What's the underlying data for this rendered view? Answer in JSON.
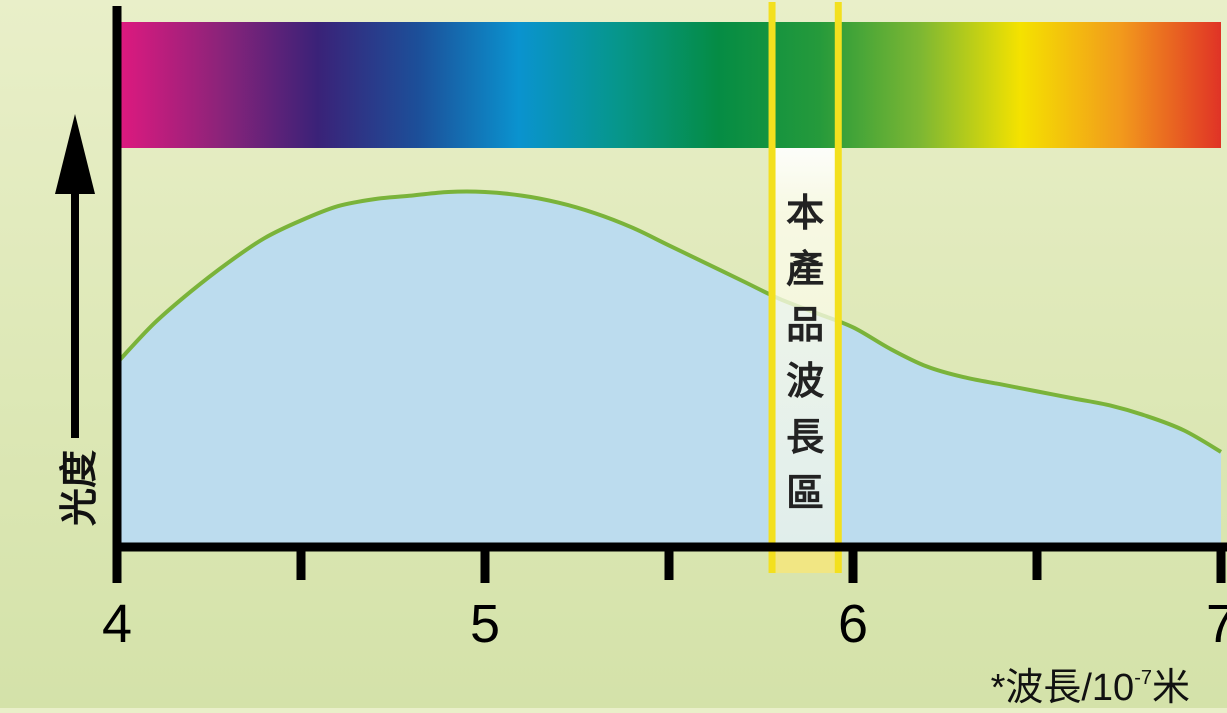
{
  "chart_data": {
    "type": "area",
    "title": "",
    "ylabel": "光度",
    "xlabel": "*波長/10⁻⁷米",
    "xlabel_parts": {
      "prefix": "*波長/10",
      "exponent": "-7",
      "suffix": "米"
    },
    "xlim": [
      4,
      7
    ],
    "x_ticks": [
      4,
      5,
      6,
      7
    ],
    "x_minor_ticks": [
      4.5,
      5.5,
      6.5
    ],
    "y_axis_values": "none",
    "grid": false,
    "legend": "none",
    "series": [
      {
        "x": [
          4.0,
          4.1,
          4.2,
          4.3,
          4.4,
          4.5,
          4.6,
          4.7,
          4.8,
          4.9,
          5.0,
          5.1,
          5.2,
          5.3,
          5.4,
          5.5,
          5.6,
          5.7,
          5.8,
          5.9,
          6.0,
          6.1,
          6.2,
          6.3,
          6.4,
          6.5,
          6.6,
          6.7,
          6.8,
          6.9,
          7.0
        ],
        "y": [
          0.52,
          0.63,
          0.72,
          0.8,
          0.87,
          0.92,
          0.96,
          0.98,
          0.99,
          1.0,
          1.0,
          0.99,
          0.97,
          0.94,
          0.9,
          0.85,
          0.8,
          0.75,
          0.7,
          0.66,
          0.62,
          0.56,
          0.51,
          0.48,
          0.46,
          0.44,
          0.42,
          0.4,
          0.37,
          0.33,
          0.27
        ]
      }
    ],
    "highlight_band": {
      "x_range": [
        5.78,
        5.96
      ],
      "label": "本產品波長區"
    },
    "spectrum_colors": [
      "#e0197f",
      "#8e237a",
      "#3a2278",
      "#1c4f99",
      "#0a93cf",
      "#06968a",
      "#058c44",
      "#259a3b",
      "#7cb733",
      "#f4e200",
      "#f29a1c",
      "#e03326"
    ],
    "colors": {
      "area_fill": "#bcdcee",
      "curve": "#7ab33a",
      "axis": "#000000",
      "band_border": "#f3e01e",
      "band_fill": "#fbfbe9",
      "band_label": "#222222"
    }
  }
}
